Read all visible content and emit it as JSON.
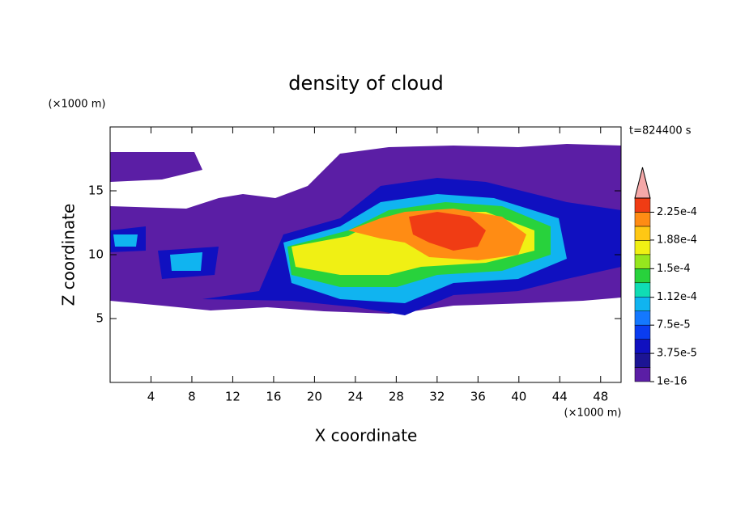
{
  "chart_data": {
    "type": "contour",
    "title": "density of cloud",
    "xlabel": "X coordinate",
    "ylabel": "Z coordinate",
    "x_unit": "(×1000 m)",
    "y_unit": "(×1000 m)",
    "annotation": "t=824400 s",
    "xlim": [
      0,
      50
    ],
    "ylim": [
      0,
      20
    ],
    "xticks": [
      4,
      8,
      12,
      16,
      20,
      24,
      28,
      32,
      36,
      40,
      44,
      48
    ],
    "yticks": [
      5,
      10,
      15
    ],
    "clim": [
      1e-16,
      0.00024375
    ],
    "cticks": [
      1e-16,
      {
        "value": 3.75e-05,
        "label": "3.75e-5"
      },
      {
        "value": 7.5e-05,
        "label": "7.5e-5"
      },
      {
        "value": 0.000112,
        "label": "1.12e-4"
      },
      {
        "value": 0.00015,
        "label": "1.5e-4"
      },
      {
        "value": 0.000188,
        "label": "1.88e-4"
      },
      {
        "value": 0.000225,
        "label": "2.25e-4"
      }
    ],
    "colors": [
      "#5b1ea5",
      "#1c1494",
      "#1010c0",
      "#0a3cf0",
      "#1478ff",
      "#10b4f0",
      "#10dcb4",
      "#28d23c",
      "#96e61e",
      "#f0f014",
      "#ffc814",
      "#ff8c14",
      "#f03c14"
    ],
    "extend_color": "#f4a8a8"
  }
}
